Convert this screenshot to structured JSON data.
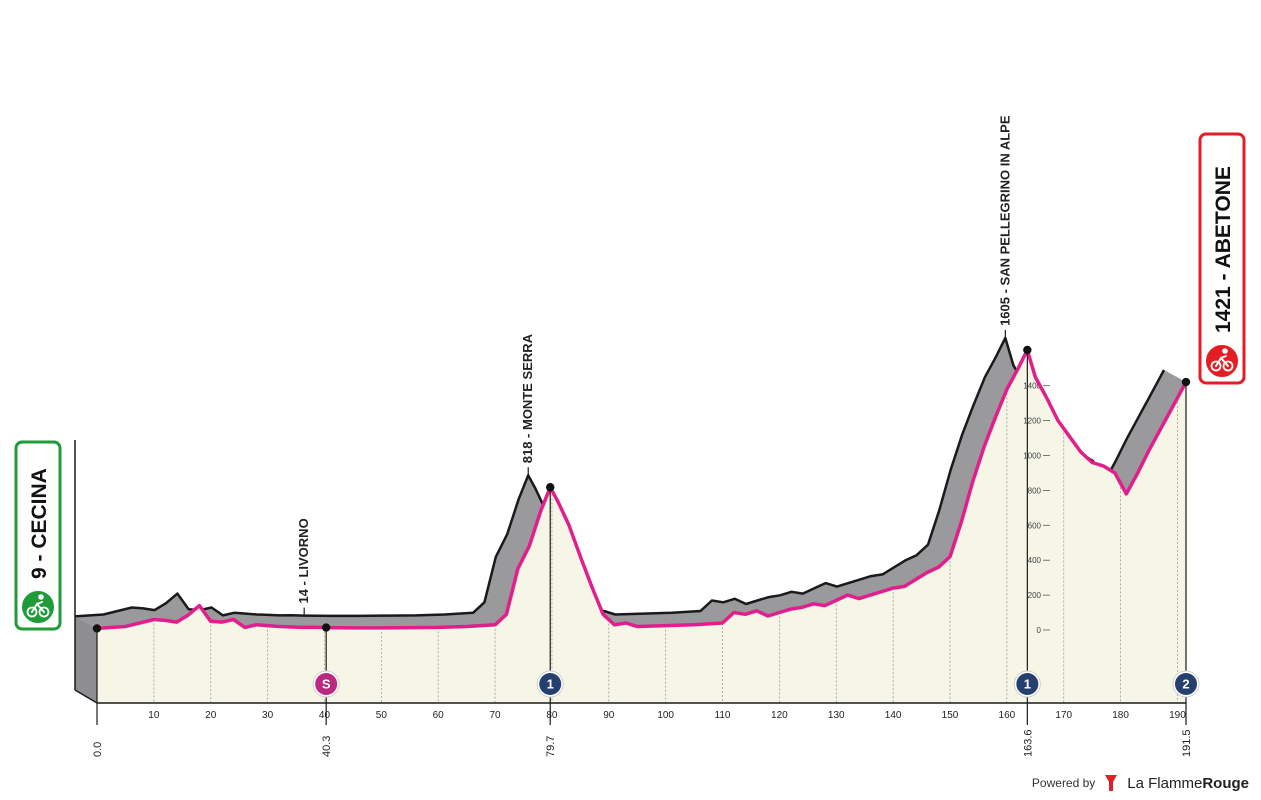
{
  "chart_data": {
    "type": "area",
    "title": "",
    "xlabel": "",
    "ylabel": "",
    "xlim": [
      0,
      191.5
    ],
    "ylim": [
      0,
      1700
    ],
    "x_ticks": [
      10,
      20,
      30,
      40,
      50,
      60,
      70,
      80,
      90,
      100,
      110,
      120,
      130,
      140,
      150,
      160,
      170,
      180,
      190
    ],
    "y_ticks": [
      0,
      200,
      400,
      600,
      800,
      1000,
      1200,
      1400
    ],
    "profile": {
      "x": [
        0,
        5,
        10,
        12,
        14,
        16,
        18,
        20,
        22,
        24,
        26,
        28,
        30,
        32,
        34,
        36,
        38,
        40.3,
        45,
        50,
        55,
        60,
        65,
        70,
        72,
        74,
        76,
        78,
        79.7,
        81,
        83,
        85,
        87,
        89,
        91,
        93,
        95,
        100,
        105,
        110,
        112,
        114,
        116,
        118,
        120,
        122,
        124,
        126,
        128,
        130,
        132,
        134,
        136,
        138,
        140,
        142,
        144,
        146,
        148,
        150,
        152,
        154,
        156,
        158,
        160,
        162,
        163.6,
        165,
        167,
        169,
        171,
        173,
        175,
        177,
        179,
        181,
        183,
        185,
        187,
        189,
        191.5
      ],
      "y": [
        9,
        20,
        60,
        55,
        45,
        85,
        140,
        50,
        45,
        60,
        15,
        30,
        25,
        20,
        18,
        15,
        16,
        14,
        12,
        12,
        14,
        15,
        20,
        30,
        90,
        350,
        480,
        680,
        818,
        740,
        600,
        420,
        250,
        90,
        30,
        40,
        20,
        25,
        30,
        40,
        100,
        90,
        110,
        80,
        100,
        120,
        130,
        150,
        140,
        170,
        200,
        180,
        200,
        220,
        240,
        250,
        290,
        330,
        360,
        420,
        620,
        850,
        1050,
        1220,
        1380,
        1500,
        1605,
        1450,
        1330,
        1200,
        1110,
        1020,
        960,
        940,
        900,
        780,
        900,
        1030,
        1150,
        1270,
        1421
      ]
    },
    "towns": [
      {
        "km": 0,
        "km_label": "0.0",
        "elevation": 9,
        "name": "CECINA",
        "elevation_label": "9",
        "label": "9 - CECINA",
        "role": "start"
      },
      {
        "km": 40.3,
        "km_label": "40.3",
        "elevation": 14,
        "name": "LIVORNO",
        "label": "14 - LIVORNO",
        "marker": "S"
      },
      {
        "km": 79.7,
        "km_label": "79.7",
        "elevation": 818,
        "name": "MONTE SERRA",
        "label": "818 - MONTE SERRA",
        "marker": "1"
      },
      {
        "km": 163.6,
        "km_label": "163.6",
        "elevation": 1605,
        "name": "SAN PELLEGRINO IN ALPE",
        "label": "1605 - SAN PELLEGRINO IN ALPE",
        "marker": "1"
      },
      {
        "km": 191.5,
        "km_label": "191.5",
        "elevation": 1421,
        "name": "ABETONE",
        "label": "1421 - ABETONE",
        "role": "finish",
        "marker": "2"
      }
    ],
    "colors": {
      "profile_line": "#e21e8c",
      "profile_fill": "#f5f6e6",
      "side_wall": "#9a9a9c",
      "start_badge": "#1f9b3a",
      "finish_badge": "#e31e24",
      "sprint_marker": "#b8297f",
      "climb_marker": "#25406f"
    }
  },
  "branding": {
    "powered_by": "Powered by",
    "name_light": "La Flamme",
    "name_bold": "Rouge"
  }
}
